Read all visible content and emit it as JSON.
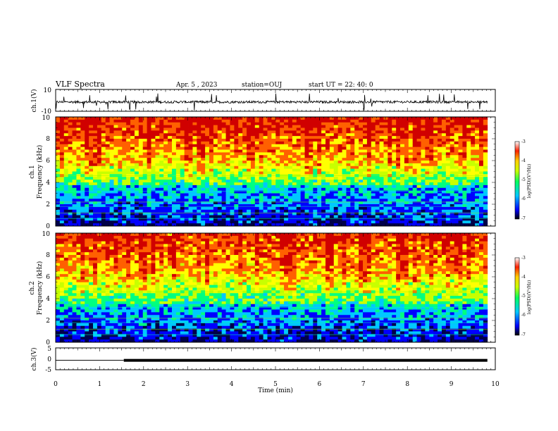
{
  "header": {
    "title": "VLF Spectra",
    "date": "Apr. 5 , 2023",
    "station": "station=OUJ",
    "start": "start UT = 22: 40: 0"
  },
  "chart_data": [
    {
      "type": "line",
      "panel": "waveform-ch1",
      "ylabel": "ch.1(V)",
      "ylim": [
        -10,
        10
      ],
      "yticks": [
        "10",
        "-10"
      ],
      "baseline": -1.5
    },
    {
      "type": "heatmap",
      "panel": "spectrogram-ch1",
      "ylabel_line1": "ch.1",
      "ylabel_line2": "Frequency (kHz)",
      "ylim": [
        0,
        10
      ],
      "yticks": [
        "0",
        "2",
        "4",
        "6",
        "8",
        "10"
      ],
      "colorbar": {
        "label": "log(PSD)(V²/Hz)",
        "range": [
          -7,
          -3
        ],
        "ticks": [
          "-3",
          "-4",
          "-5",
          "-6",
          "-7"
        ]
      }
    },
    {
      "type": "heatmap",
      "panel": "spectrogram-ch2",
      "ylabel_line1": "ch.2",
      "ylabel_line2": "Frequency (kHz)",
      "ylim": [
        0,
        10
      ],
      "yticks": [
        "0",
        "2",
        "4",
        "6",
        "8",
        "10"
      ],
      "colorbar": {
        "label": "log(PSD)(V²/Hz)",
        "range": [
          -7,
          -3
        ],
        "ticks": [
          "-3",
          "-4",
          "-5",
          "-6",
          "-7"
        ]
      }
    },
    {
      "type": "line",
      "panel": "waveform-ch3",
      "ylabel": "ch.3(V)",
      "ylim": [
        -5,
        5
      ],
      "yticks": [
        "5",
        "0",
        "-5"
      ],
      "step": {
        "x_start": 0,
        "x_step": 1.55,
        "y": -0.7
      }
    }
  ],
  "xaxis": {
    "label": "Time (min)",
    "xlim": [
      0,
      10
    ],
    "ticks": [
      "0",
      "1",
      "2",
      "3",
      "4",
      "5",
      "6",
      "7",
      "8",
      "9",
      "10"
    ],
    "data_end": 9.82
  },
  "colors": {
    "colormap": [
      "#00004a",
      "#0000ff",
      "#00c8ff",
      "#00ff80",
      "#c8ff00",
      "#ffff00",
      "#ff6000",
      "#d00000"
    ]
  }
}
